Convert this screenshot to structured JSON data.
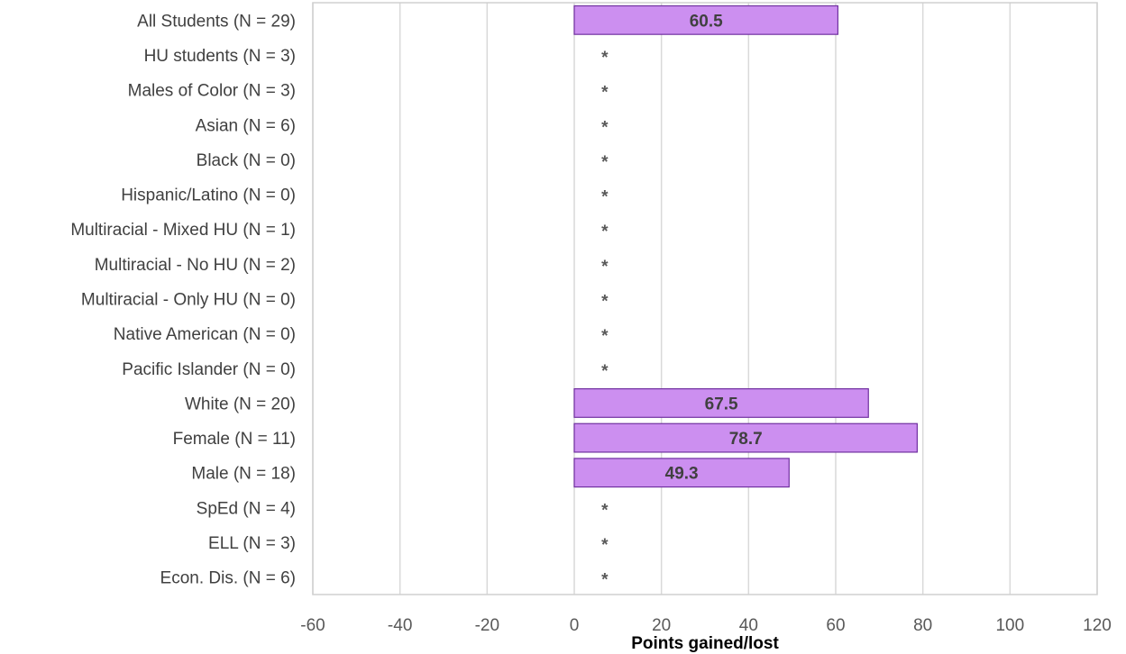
{
  "chart_data": {
    "type": "bar",
    "orientation": "horizontal",
    "title": "",
    "xlabel": "Points gained/lost",
    "ylabel": "",
    "xlim": [
      -60,
      120
    ],
    "xticks": [
      -60,
      -40,
      -20,
      0,
      20,
      40,
      60,
      80,
      100,
      120
    ],
    "grid": true,
    "bar_color": "#cc8ff0",
    "bar_border_color": "#7030a0",
    "suppressed_marker": "*",
    "categories": [
      "All Students (N = 29)",
      "HU students (N = 3)",
      "Males of Color (N = 3)",
      "Asian (N = 6)",
      "Black (N = 0)",
      "Hispanic/Latino (N = 0)",
      "Multiracial - Mixed HU (N = 1)",
      "Multiracial - No HU (N = 2)",
      "Multiracial - Only HU (N = 0)",
      "Native American (N = 0)",
      "Pacific Islander (N = 0)",
      "White (N = 20)",
      "Female (N = 11)",
      "Male (N = 18)",
      "SpEd (N = 4)",
      "ELL (N = 3)",
      "Econ. Dis. (N = 6)"
    ],
    "values": [
      60.5,
      null,
      null,
      null,
      null,
      null,
      null,
      null,
      null,
      null,
      null,
      67.5,
      78.7,
      49.3,
      null,
      null,
      null
    ],
    "data_labels": [
      "60.5",
      "*",
      "*",
      "*",
      "*",
      "*",
      "*",
      "*",
      "*",
      "*",
      "*",
      "67.5",
      "78.7",
      "49.3",
      "*",
      "*",
      "*"
    ]
  }
}
